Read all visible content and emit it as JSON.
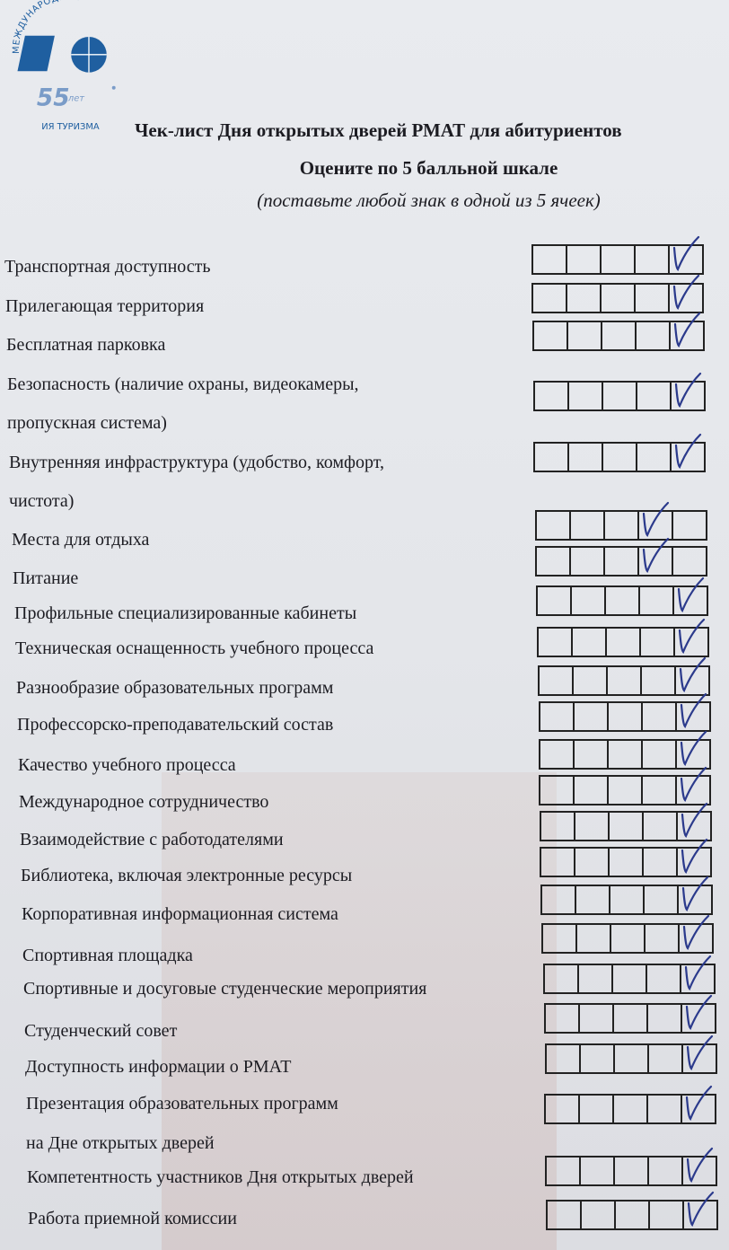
{
  "logo": {
    "text_top": "МЕЖДУНАРОДНАЯ",
    "text_bottom": "ИЯ ТУРИЗМА",
    "years": "55",
    "years_label": "лет",
    "color": "#1f5fa0"
  },
  "header": {
    "title": "Чек-лист Дня открытых дверей РМАТ для абитуриентов",
    "subtitle": "Оцените по 5 балльной шкале",
    "instruction": "(поставьте любой знак в одной из 5 ячеек)"
  },
  "scale_max": 5,
  "check_color": "#2b3a8c",
  "items": [
    {
      "label": [
        "Транспортная доступность"
      ],
      "rating": 5
    },
    {
      "label": [
        "Прилегающая территория"
      ],
      "rating": 5
    },
    {
      "label": [
        "Бесплатная парковка"
      ],
      "rating": 5
    },
    {
      "label": [
        "Безопасность (наличие охраны, видеокамеры,",
        "пропускная система)"
      ],
      "rating": 5
    },
    {
      "label": [
        "Внутренняя инфраструктура (удобство, комфорт,",
        "чистота)"
      ],
      "rating": 5
    },
    {
      "label": [
        "Места для отдыха"
      ],
      "rating": 4
    },
    {
      "label": [
        "Питание"
      ],
      "rating": 4
    },
    {
      "label": [
        "Профильные специализированные кабинеты"
      ],
      "rating": 5
    },
    {
      "label": [
        "Техническая оснащенность учебного процесса"
      ],
      "rating": 5
    },
    {
      "label": [
        "Разнообразие образовательных программ"
      ],
      "rating": 5
    },
    {
      "label": [
        "Профессорско-преподавательский состав"
      ],
      "rating": 5
    },
    {
      "label": [
        "Качество учебного процесса"
      ],
      "rating": 5
    },
    {
      "label": [
        "Международное сотрудничество"
      ],
      "rating": 5
    },
    {
      "label": [
        "Взаимодействие с работодателями"
      ],
      "rating": 5
    },
    {
      "label": [
        "Библиотека, включая электронные ресурсы"
      ],
      "rating": 5
    },
    {
      "label": [
        "Корпоративная информационная система"
      ],
      "rating": 5
    },
    {
      "label": [
        "Спортивная площадка"
      ],
      "rating": 5
    },
    {
      "label": [
        "Спортивные и досуговые студенческие мероприятия"
      ],
      "rating": 5
    },
    {
      "label": [
        "Студенческий совет"
      ],
      "rating": 5
    },
    {
      "label": [
        "Доступность информации о РМАТ"
      ],
      "rating": 5
    },
    {
      "label": [
        "Презентация образовательных программ",
        "на Дне открытых дверей"
      ],
      "rating": 5
    },
    {
      "label": [
        "Компетентность участников Дня открытых дверей"
      ],
      "rating": 5
    },
    {
      "label": [
        "Работа приемной комиссии"
      ],
      "rating": 5
    }
  ]
}
